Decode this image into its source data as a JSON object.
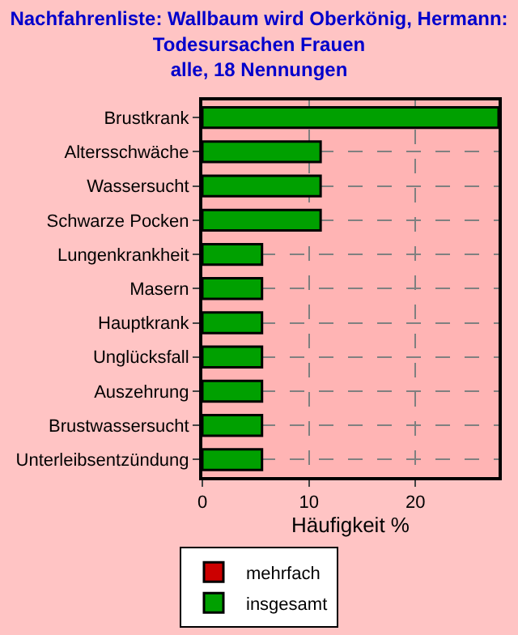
{
  "chart_data": {
    "type": "bar",
    "orientation": "horizontal",
    "title": "Nachfahrenliste: Wallbaum wird Oberkönig, Hermann:\nTodesursachen Frauen\nalle, 18 Nennungen",
    "xlabel": "Häufigkeit %",
    "categories": [
      "Brustkrank",
      "Altersschwäche",
      "Wassersucht",
      "Schwarze Pocken",
      "Lungenkrankheit",
      "Masern",
      "Hauptkrank",
      "Unglücksfall",
      "Auszehrung",
      "Brustwassersucht",
      "Unterleibsentzündung"
    ],
    "series": [
      {
        "name": "mehrfach",
        "color": "#cc0000",
        "values": [
          null,
          null,
          null,
          null,
          null,
          null,
          null,
          null,
          null,
          null,
          null
        ]
      },
      {
        "name": "insgesamt",
        "color": "#00a000",
        "values": [
          27.8,
          11.1,
          11.1,
          11.1,
          5.6,
          5.6,
          5.6,
          5.6,
          5.6,
          5.6,
          5.6
        ]
      }
    ],
    "xlim": [
      0,
      27.8
    ],
    "xticks": [
      0,
      10,
      20
    ],
    "grid": true,
    "legend": "bottom"
  }
}
